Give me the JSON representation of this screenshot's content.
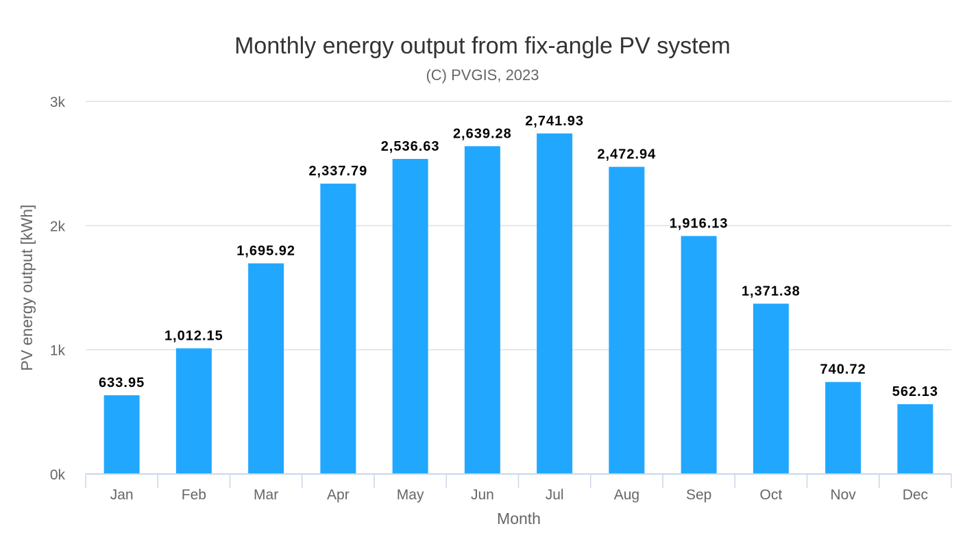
{
  "colors": {
    "bar": "#22a7ff",
    "grid": "#dce0e6",
    "axis": "#c9d6e8",
    "text": "#333333",
    "muted": "#666666"
  },
  "chart_data": {
    "type": "bar",
    "title": "Monthly energy output from fix-angle PV system",
    "subtitle": "(C) PVGIS, 2023",
    "xlabel": "Month",
    "ylabel": "PV energy output [kWh]",
    "categories": [
      "Jan",
      "Feb",
      "Mar",
      "Apr",
      "May",
      "Jun",
      "Jul",
      "Aug",
      "Sep",
      "Oct",
      "Nov",
      "Dec"
    ],
    "values": [
      633.95,
      1012.15,
      1695.92,
      2337.79,
      2536.63,
      2639.28,
      2741.93,
      2472.94,
      1916.13,
      1371.38,
      740.72,
      562.13
    ],
    "data_labels": [
      "633.95",
      "1,012.15",
      "1,695.92",
      "2,337.79",
      "2,536.63",
      "2,639.28",
      "2,741.93",
      "2,472.94",
      "1,916.13",
      "1,371.38",
      "740.72",
      "562.13"
    ],
    "ylim": [
      0,
      3000
    ],
    "yticks": [
      0,
      1000,
      2000,
      3000
    ],
    "ytick_labels": [
      "0k",
      "1k",
      "2k",
      "3k"
    ],
    "grid": true,
    "legend": "none"
  }
}
